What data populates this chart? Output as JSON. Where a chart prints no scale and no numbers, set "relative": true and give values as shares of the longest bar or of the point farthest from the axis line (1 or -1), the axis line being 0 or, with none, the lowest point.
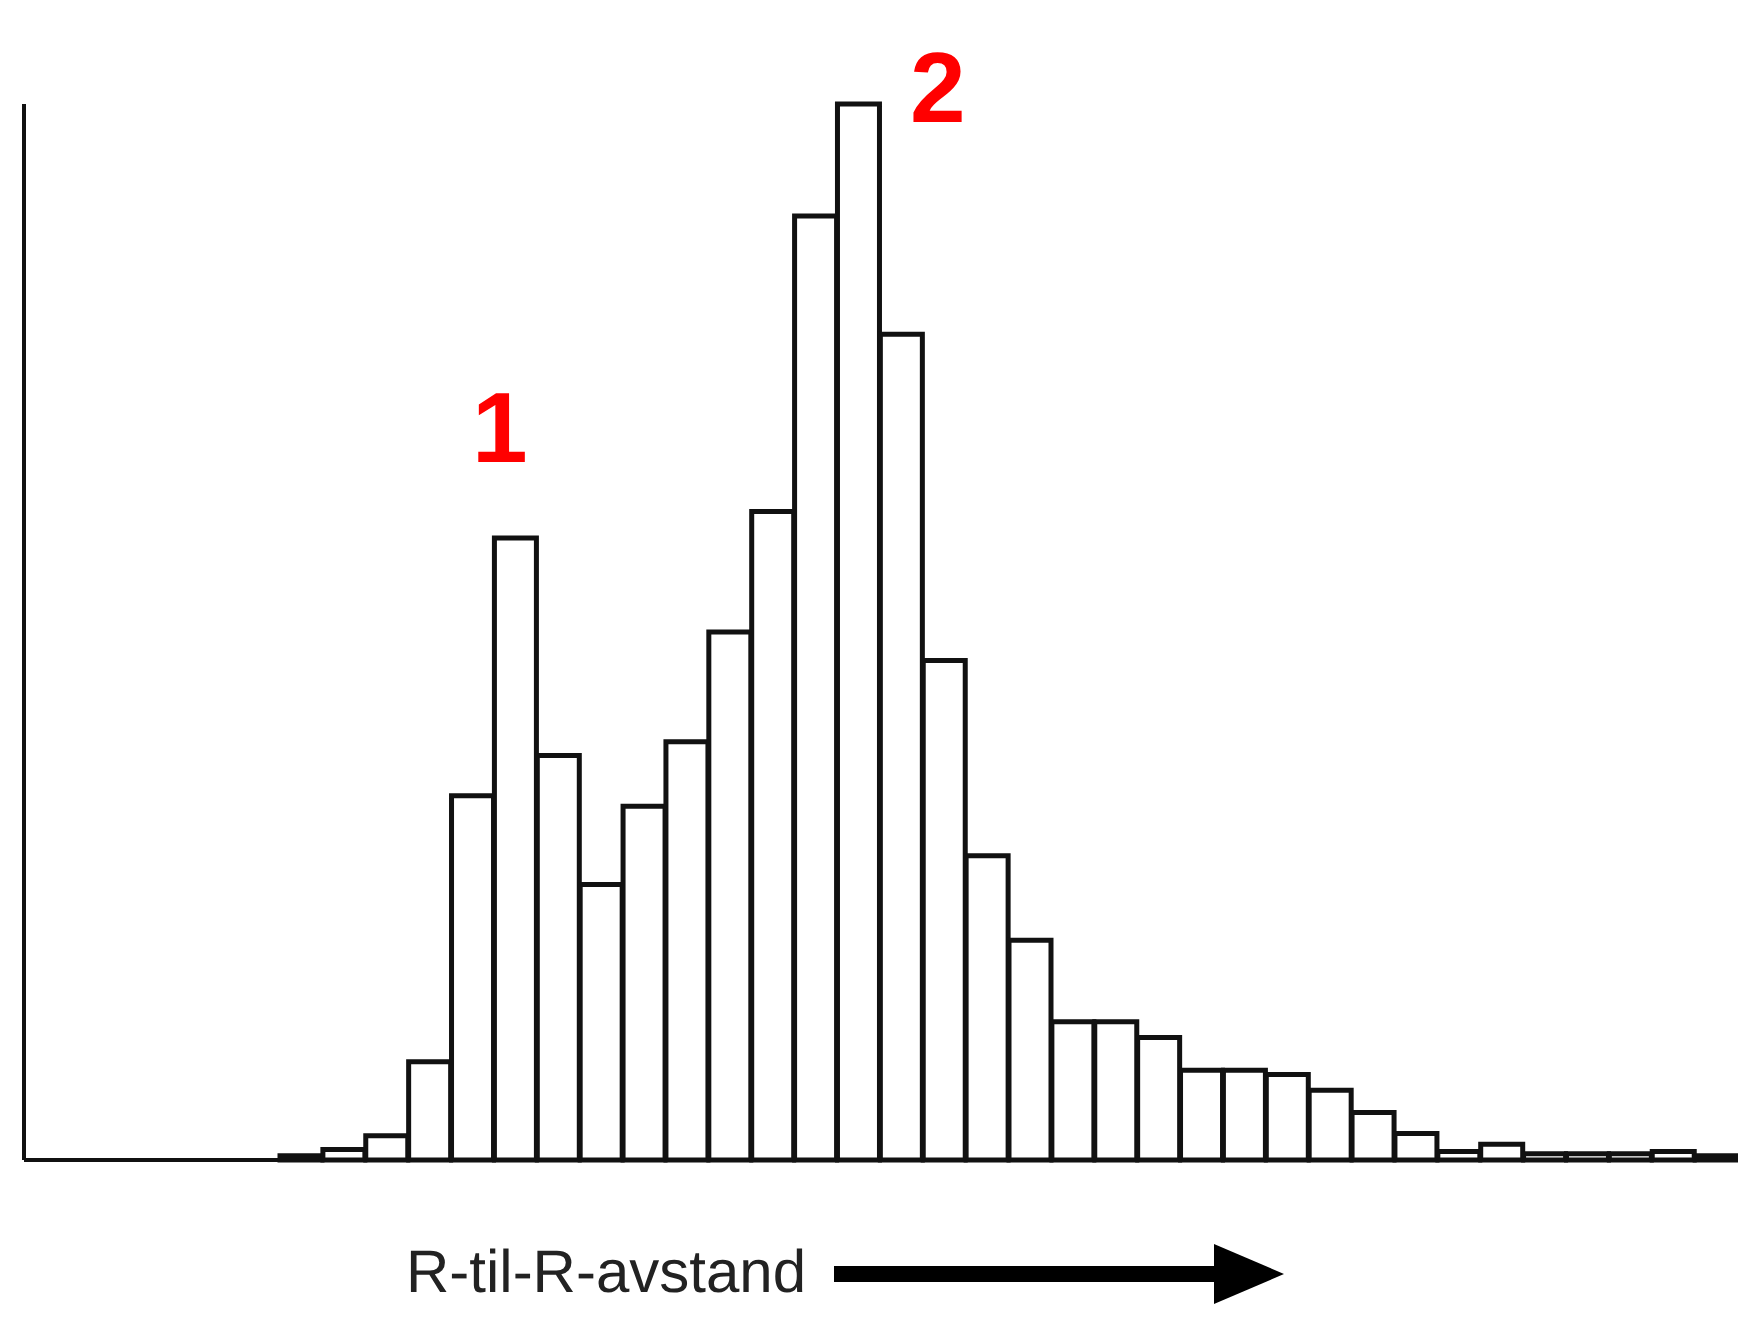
{
  "chart_data": {
    "type": "bar",
    "relative": true,
    "xlabel": "R-til-R-avstand",
    "color": "#ffffff",
    "categories": [
      null,
      null,
      null,
      null,
      null,
      null,
      null,
      null,
      null,
      null,
      null,
      null,
      null,
      null,
      null,
      null,
      null,
      null,
      null,
      null,
      null,
      null,
      null,
      null,
      null,
      null,
      null,
      null,
      null,
      null,
      null,
      null,
      null,
      null
    ],
    "values": [
      0.004,
      0.01,
      0.023,
      0.093,
      0.345,
      0.589,
      0.383,
      0.261,
      0.335,
      0.396,
      0.5,
      0.614,
      0.894,
      1,
      0.782,
      0.473,
      0.288,
      0.208,
      0.131,
      0.131,
      0.116,
      0.085,
      0.085,
      0.081,
      0.066,
      0.045,
      0.025,
      0.008,
      0.015,
      0.006,
      0.006,
      0.006,
      0.008,
      0.004
    ],
    "annotations": [
      "1",
      "2"
    ]
  }
}
